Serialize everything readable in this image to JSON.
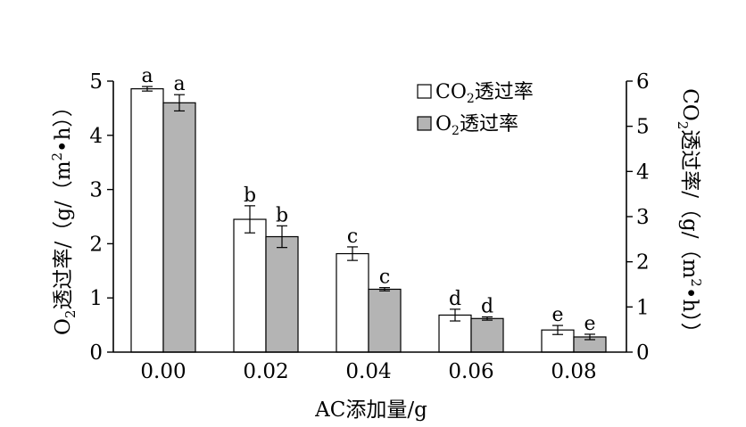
{
  "chart_data": {
    "type": "bar",
    "categories": [
      "0.00",
      "0.02",
      "0.04",
      "0.06",
      "0.08"
    ],
    "xlabel": "AC添加量/g",
    "ylabel_left": {
      "main": "O",
      "sub": "2",
      "rest": "透过率/（g/（m",
      "sup": "2",
      "end": "•h））"
    },
    "ylabel_right": {
      "main": "CO",
      "sub": "2",
      "rest": "透过率/（g/（m",
      "sup": "2",
      "end": "•h））"
    },
    "ylim_left": [
      0,
      5
    ],
    "ylim_right": [
      0,
      6
    ],
    "yticks_left": [
      0,
      1,
      2,
      3,
      4,
      5
    ],
    "yticks_right": [
      0,
      1,
      2,
      3,
      4,
      5,
      6
    ],
    "grid": false,
    "legend_position": "top-right",
    "series": [
      {
        "name": "CO₂透过率",
        "legend": {
          "main": "CO",
          "sub": "2",
          "rest": "透过率"
        },
        "axis": "right",
        "color": "#ffffff",
        "values": [
          5.83,
          2.94,
          2.18,
          0.82,
          0.49
        ],
        "errors": [
          0.05,
          0.3,
          0.15,
          0.13,
          0.1
        ],
        "letters": [
          "a",
          "b",
          "c",
          "d",
          "e"
        ]
      },
      {
        "name": "O₂透过率",
        "legend": {
          "main": "O",
          "sub": "2",
          "rest": "透过率"
        },
        "axis": "left",
        "color": "#b4b4b4",
        "values": [
          4.6,
          2.13,
          1.16,
          0.62,
          0.28
        ],
        "errors": [
          0.15,
          0.2,
          0.03,
          0.03,
          0.05
        ],
        "letters": [
          "a",
          "b",
          "c",
          "d",
          "e"
        ]
      }
    ]
  }
}
